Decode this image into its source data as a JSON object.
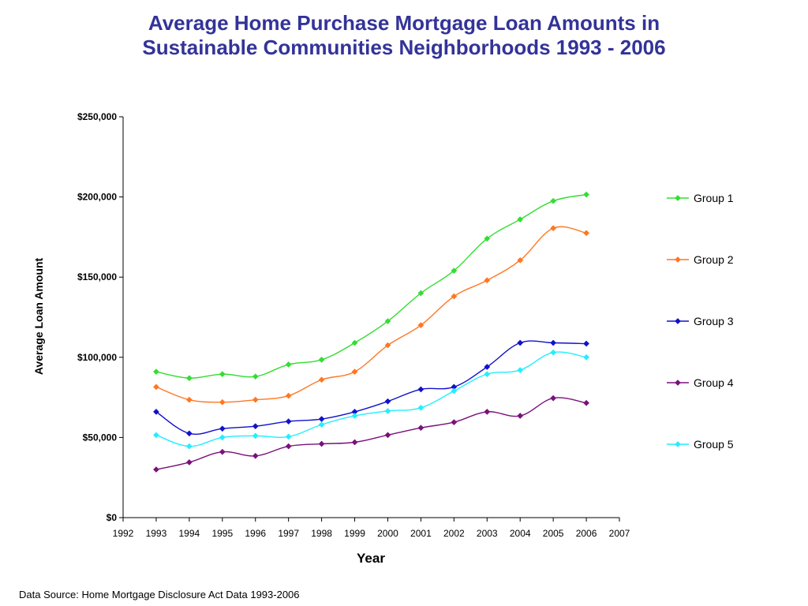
{
  "title_line1": "Average Home Purchase Mortgage Loan Amounts in",
  "title_line2": "Sustainable Communities Neighborhoods 1993 - 2006",
  "source_note": "Data Source: Home Mortgage Disclosure Act Data 1993-2006",
  "chart_data": {
    "type": "line",
    "title": "Average Home Purchase Mortgage Loan Amounts in Sustainable Communities Neighborhoods 1993 - 2006",
    "xlabel": "Year",
    "ylabel": "Average Loan Amount",
    "xlim": [
      1992,
      2007
    ],
    "ylim": [
      0,
      250000
    ],
    "x_ticks": [
      1992,
      1993,
      1994,
      1995,
      1996,
      1997,
      1998,
      1999,
      2000,
      2001,
      2002,
      2003,
      2004,
      2005,
      2006,
      2007
    ],
    "y_ticks": [
      {
        "value": 0,
        "label": "$0"
      },
      {
        "value": 50000,
        "label": "$50,000"
      },
      {
        "value": 100000,
        "label": "$100,000"
      },
      {
        "value": 150000,
        "label": "$150,000"
      },
      {
        "value": 200000,
        "label": "$200,000"
      },
      {
        "value": 250000,
        "label": "$250,000"
      }
    ],
    "grid": false,
    "legend_position": "right",
    "smoothed": true,
    "marker": "diamond",
    "x": [
      1993,
      1994,
      1995,
      1996,
      1997,
      1998,
      1999,
      2000,
      2001,
      2002,
      2003,
      2004,
      2005,
      2006
    ],
    "series": [
      {
        "name": "Group 1",
        "color": "#33dd33",
        "values": [
          91000,
          87000,
          89500,
          88000,
          95500,
          98500,
          109000,
          122500,
          140000,
          154000,
          174000,
          186000,
          197500,
          201500
        ]
      },
      {
        "name": "Group 2",
        "color": "#ff7722",
        "values": [
          81500,
          73500,
          72000,
          73500,
          76000,
          86000,
          91000,
          107500,
          120000,
          138000,
          148000,
          160500,
          180500,
          177500
        ]
      },
      {
        "name": "Group 3",
        "color": "#1111cc",
        "values": [
          66000,
          52500,
          55500,
          57000,
          60000,
          61500,
          66000,
          72500,
          80000,
          81500,
          94000,
          109000,
          109000,
          108500
        ]
      },
      {
        "name": "Group 4",
        "color": "#7a117a",
        "values": [
          30000,
          34500,
          41000,
          38500,
          44500,
          46000,
          47000,
          51500,
          56000,
          59500,
          66000,
          63500,
          74500,
          71500
        ]
      },
      {
        "name": "Group 5",
        "color": "#22eeff",
        "values": [
          51500,
          44500,
          50000,
          51000,
          50500,
          58000,
          63500,
          66500,
          68500,
          79000,
          89500,
          92000,
          103000,
          100000
        ]
      }
    ]
  }
}
